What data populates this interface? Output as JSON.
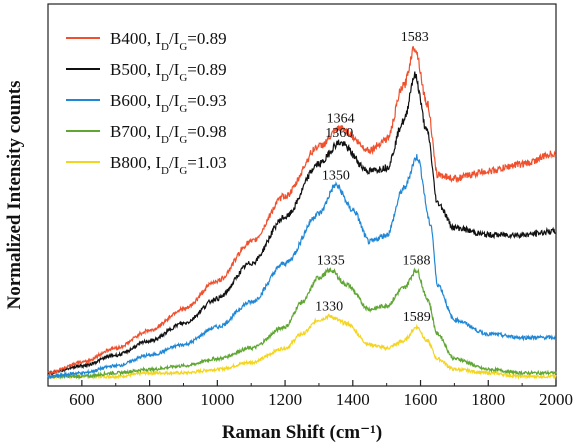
{
  "chart_data": {
    "type": "line",
    "xlabel": "Raman Shift (cm⁻¹)",
    "ylabel": "Normalized Intensity counts",
    "xlim": [
      500,
      2000
    ],
    "ylim": [
      0,
      100
    ],
    "xticks": [
      "600",
      "800",
      "1000",
      "1200",
      "1400",
      "1600",
      "1800",
      "2000"
    ],
    "xtick_values": [
      600,
      800,
      1000,
      1200,
      1400,
      1600,
      1800,
      2000
    ],
    "y_tick_labels": false,
    "grid": false,
    "legend_placement": "top-left",
    "series": [
      {
        "name": "B400",
        "ratio": "0.89",
        "color": "#f0502d",
        "x": [
          500,
          600,
          700,
          800,
          900,
          1000,
          1100,
          1200,
          1300,
          1364,
          1450,
          1500,
          1550,
          1583,
          1620,
          1650,
          1700,
          1800,
          1900,
          2000
        ],
        "y": [
          2,
          5,
          9,
          14,
          20,
          28,
          39,
          52,
          66,
          71,
          65,
          68,
          83,
          94,
          78,
          58,
          57,
          59,
          61,
          64
        ]
      },
      {
        "name": "B500",
        "ratio": "0.89",
        "color": "#111111",
        "x": [
          500,
          600,
          700,
          800,
          900,
          1000,
          1100,
          1200,
          1300,
          1360,
          1450,
          1500,
          1550,
          1583,
          1620,
          1650,
          1700,
          1800,
          1900,
          2000
        ],
        "y": [
          2,
          4,
          7,
          11,
          16,
          23,
          33,
          46,
          61,
          67,
          59,
          60,
          73,
          86,
          70,
          50,
          43,
          41,
          41,
          42
        ]
      },
      {
        "name": "B600",
        "ratio": "0.93",
        "color": "#1f87d6",
        "x": [
          500,
          600,
          700,
          800,
          900,
          1000,
          1100,
          1200,
          1300,
          1350,
          1400,
          1450,
          1500,
          1550,
          1590,
          1630,
          1650,
          1700,
          1800,
          1900,
          2000
        ],
        "y": [
          1,
          2,
          4,
          7,
          10,
          15,
          22,
          33,
          47,
          55,
          48,
          39,
          41,
          54,
          63,
          44,
          27,
          17,
          13,
          12,
          12
        ]
      },
      {
        "name": "B700",
        "ratio": "0.98",
        "color": "#5fa632",
        "x": [
          500,
          600,
          700,
          800,
          900,
          1000,
          1100,
          1200,
          1250,
          1300,
          1335,
          1380,
          1450,
          1500,
          1550,
          1588,
          1620,
          1650,
          1700,
          1800,
          1900,
          2000
        ],
        "y": [
          1,
          1,
          2,
          3,
          4,
          6,
          9,
          15,
          22,
          29,
          31,
          27,
          20,
          21,
          26,
          31,
          23,
          13,
          6,
          3,
          2,
          2
        ]
      },
      {
        "name": "B800",
        "ratio": "1.03",
        "color": "#f3d520",
        "x": [
          500,
          600,
          700,
          800,
          900,
          1000,
          1100,
          1200,
          1250,
          1300,
          1330,
          1380,
          1450,
          1500,
          1550,
          1589,
          1620,
          1650,
          1700,
          1800,
          1900,
          2000
        ],
        "y": [
          1,
          1,
          1,
          2,
          2,
          3,
          5,
          9,
          13,
          17,
          18,
          16,
          10,
          9,
          11,
          15,
          11,
          6,
          3,
          2,
          1,
          1
        ]
      }
    ],
    "annotations": [
      {
        "text": "1583",
        "x": 1583,
        "y": 94
      },
      {
        "text": "1364",
        "x": 1364,
        "y": 71
      },
      {
        "text": "1360",
        "x": 1360,
        "y": 67
      },
      {
        "text": "1350",
        "x": 1350,
        "y": 55
      },
      {
        "text": "1335",
        "x": 1335,
        "y": 31
      },
      {
        "text": "1588",
        "x": 1588,
        "y": 31
      },
      {
        "text": "1330",
        "x": 1330,
        "y": 18
      },
      {
        "text": "1589",
        "x": 1589,
        "y": 15
      }
    ]
  }
}
